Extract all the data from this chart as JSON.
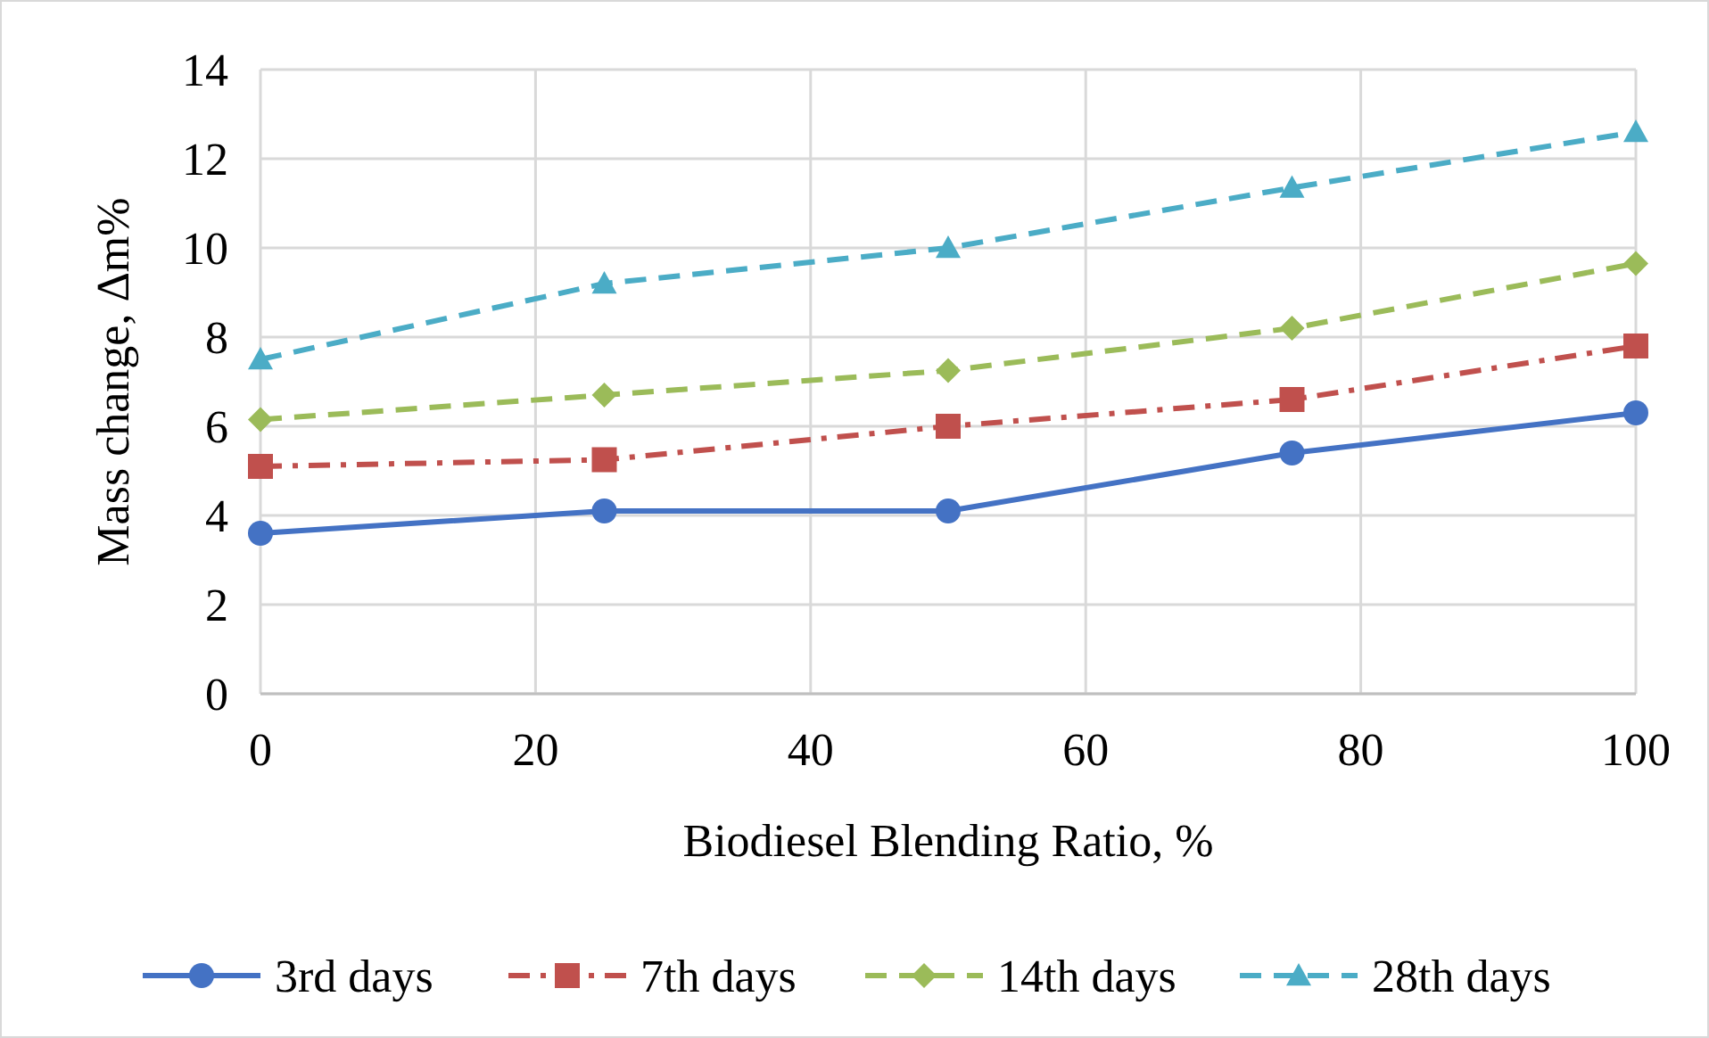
{
  "chart_data": {
    "type": "line",
    "xlabel": "Biodiesel Blending Ratio, %",
    "ylabel": "Mass change, Δm%",
    "x": [
      0,
      25,
      50,
      75,
      100
    ],
    "series": [
      {
        "name": "3rd days",
        "color": "#4472c4",
        "values": [
          3.6,
          4.1,
          4.1,
          5.4,
          6.3
        ],
        "marker": "circle",
        "line_style": "solid"
      },
      {
        "name": "7th days",
        "color": "#c0504d",
        "values": [
          5.1,
          5.25,
          6.0,
          6.6,
          7.8
        ],
        "marker": "square",
        "line_style": "dashdot"
      },
      {
        "name": "14th days",
        "color": "#9bbb59",
        "values": [
          6.15,
          6.7,
          7.25,
          8.2,
          9.65
        ],
        "marker": "diamond",
        "line_style": "dashed"
      },
      {
        "name": "28th days",
        "color": "#4bacc6",
        "values": [
          7.5,
          9.2,
          10.0,
          11.35,
          12.6
        ],
        "marker": "triangle",
        "line_style": "dashed"
      }
    ],
    "xlim": [
      0,
      100
    ],
    "xticks": [
      0,
      20,
      40,
      60,
      80,
      100
    ],
    "ylim": [
      0,
      14
    ],
    "yticks": [
      0,
      2,
      4,
      6,
      8,
      10,
      12,
      14
    ],
    "grid": true,
    "legend": "bottom"
  }
}
